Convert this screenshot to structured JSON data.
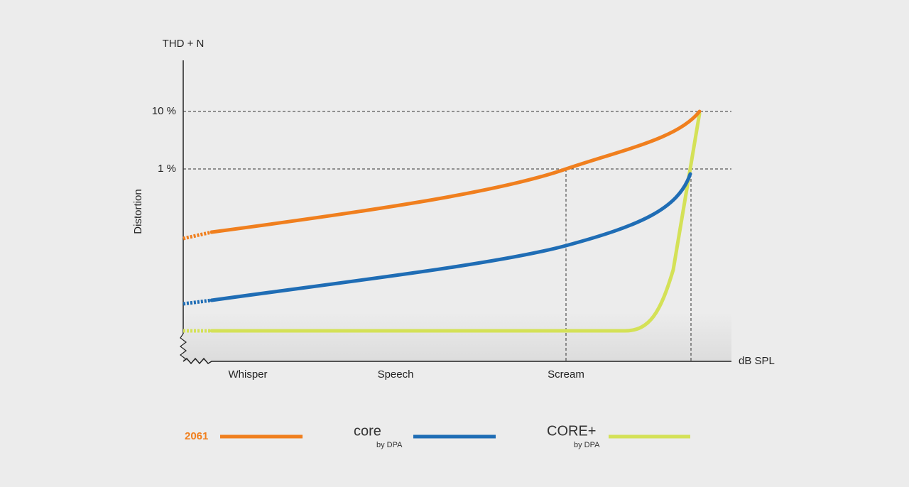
{
  "axis": {
    "y_title": "THD + N",
    "y_label": "Distortion",
    "x_title": "dB SPL",
    "y_ticks": [
      "10 %",
      "1 %"
    ],
    "x_categories": [
      "Whisper",
      "Speech",
      "Scream"
    ]
  },
  "legend": [
    {
      "label": "2061"
    },
    {
      "label": "core",
      "sub": "by DPA"
    },
    {
      "label": "CORE+",
      "sub": "by DPA"
    }
  ]
}
